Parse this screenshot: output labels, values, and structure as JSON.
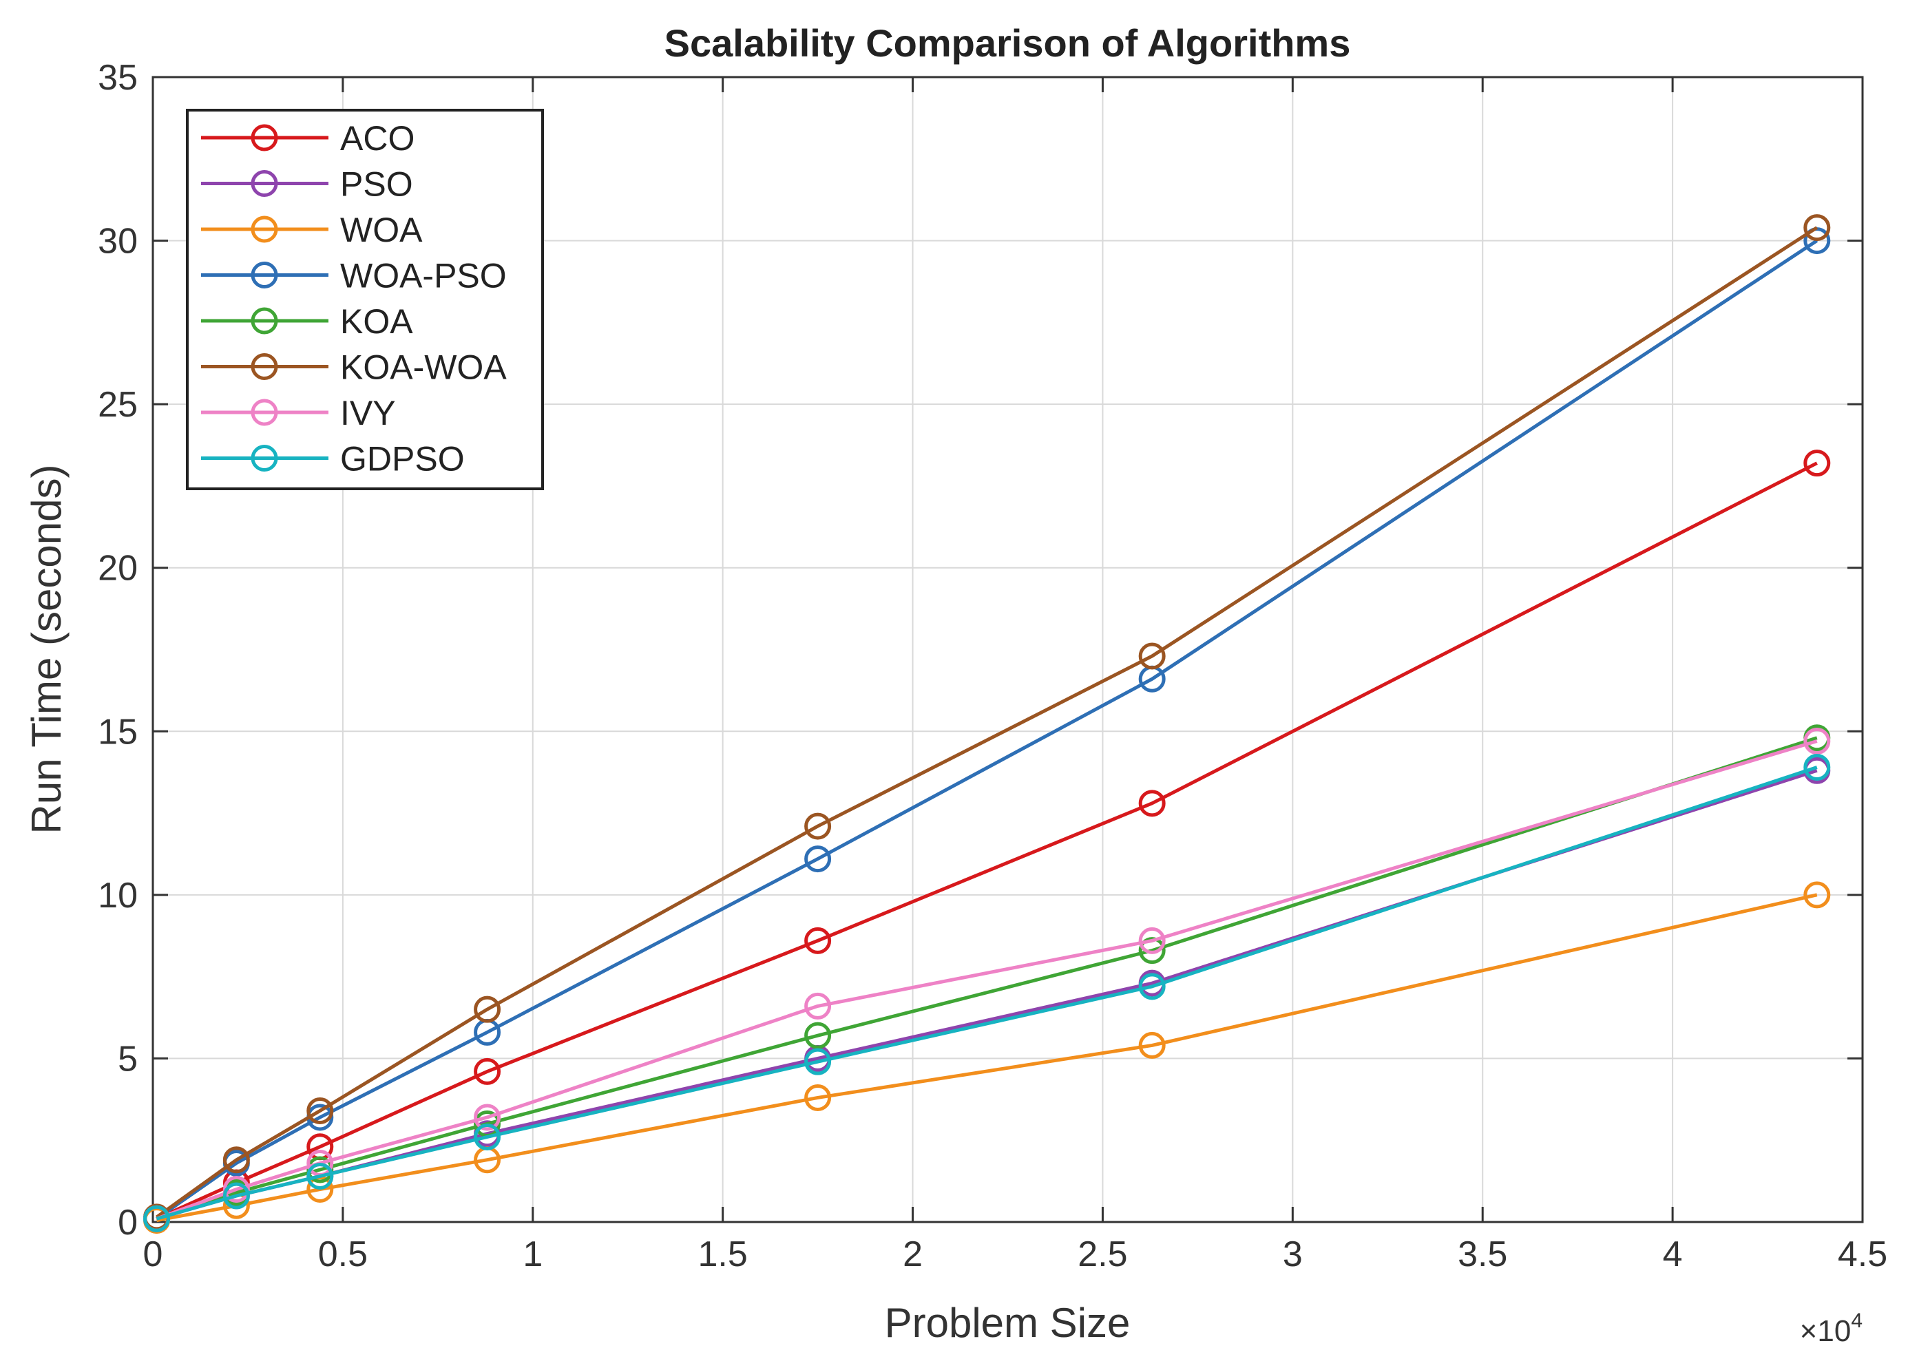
{
  "chart_data": {
    "type": "line",
    "title": "Scalability Comparison of Algorithms",
    "xlabel": "Problem Size",
    "ylabel": "Run Time (seconds)",
    "x_multiplier_base": "×10",
    "x_multiplier_exp": "4",
    "xlim": [
      0,
      4.5
    ],
    "ylim": [
      0,
      35
    ],
    "xticks": [
      0,
      0.5,
      1,
      1.5,
      2,
      2.5,
      3,
      3.5,
      4,
      4.5
    ],
    "xtick_labels": [
      "0",
      "0.5",
      "1",
      "1.5",
      "2",
      "2.5",
      "3",
      "3.5",
      "4",
      "4.5"
    ],
    "yticks": [
      0,
      5,
      10,
      15,
      20,
      25,
      30,
      35
    ],
    "ytick_labels": [
      "0",
      "5",
      "10",
      "15",
      "20",
      "25",
      "30",
      "35"
    ],
    "grid": true,
    "legend_position": "top-left",
    "x": [
      0.01,
      0.22,
      0.44,
      0.88,
      1.75,
      2.63,
      4.38
    ],
    "series": [
      {
        "name": "ACO",
        "color": "#d7191c",
        "values": [
          0.1,
          1.2,
          2.3,
          4.6,
          8.6,
          12.8,
          23.2
        ]
      },
      {
        "name": "PSO",
        "color": "#8e44ad",
        "values": [
          0.1,
          0.8,
          1.4,
          2.7,
          5.0,
          7.3,
          13.8
        ]
      },
      {
        "name": "WOA",
        "color": "#f28e1c",
        "values": [
          0.05,
          0.5,
          1.0,
          1.9,
          3.8,
          5.4,
          10.0
        ]
      },
      {
        "name": "WOA-PSO",
        "color": "#2e6fb5",
        "values": [
          0.1,
          1.8,
          3.2,
          5.8,
          11.1,
          16.6,
          30.0
        ]
      },
      {
        "name": "KOA",
        "color": "#3fa535",
        "values": [
          0.1,
          0.9,
          1.6,
          3.0,
          5.7,
          8.3,
          14.8
        ]
      },
      {
        "name": "KOA-WOA",
        "color": "#9b5522",
        "values": [
          0.15,
          1.9,
          3.4,
          6.5,
          12.1,
          17.3,
          30.4
        ]
      },
      {
        "name": "IVY",
        "color": "#ee82c6",
        "values": [
          0.1,
          1.0,
          1.8,
          3.2,
          6.6,
          8.6,
          14.7
        ]
      },
      {
        "name": "GDPSO",
        "color": "#17b3c1",
        "values": [
          0.1,
          0.8,
          1.4,
          2.6,
          4.9,
          7.2,
          13.9
        ]
      }
    ]
  }
}
